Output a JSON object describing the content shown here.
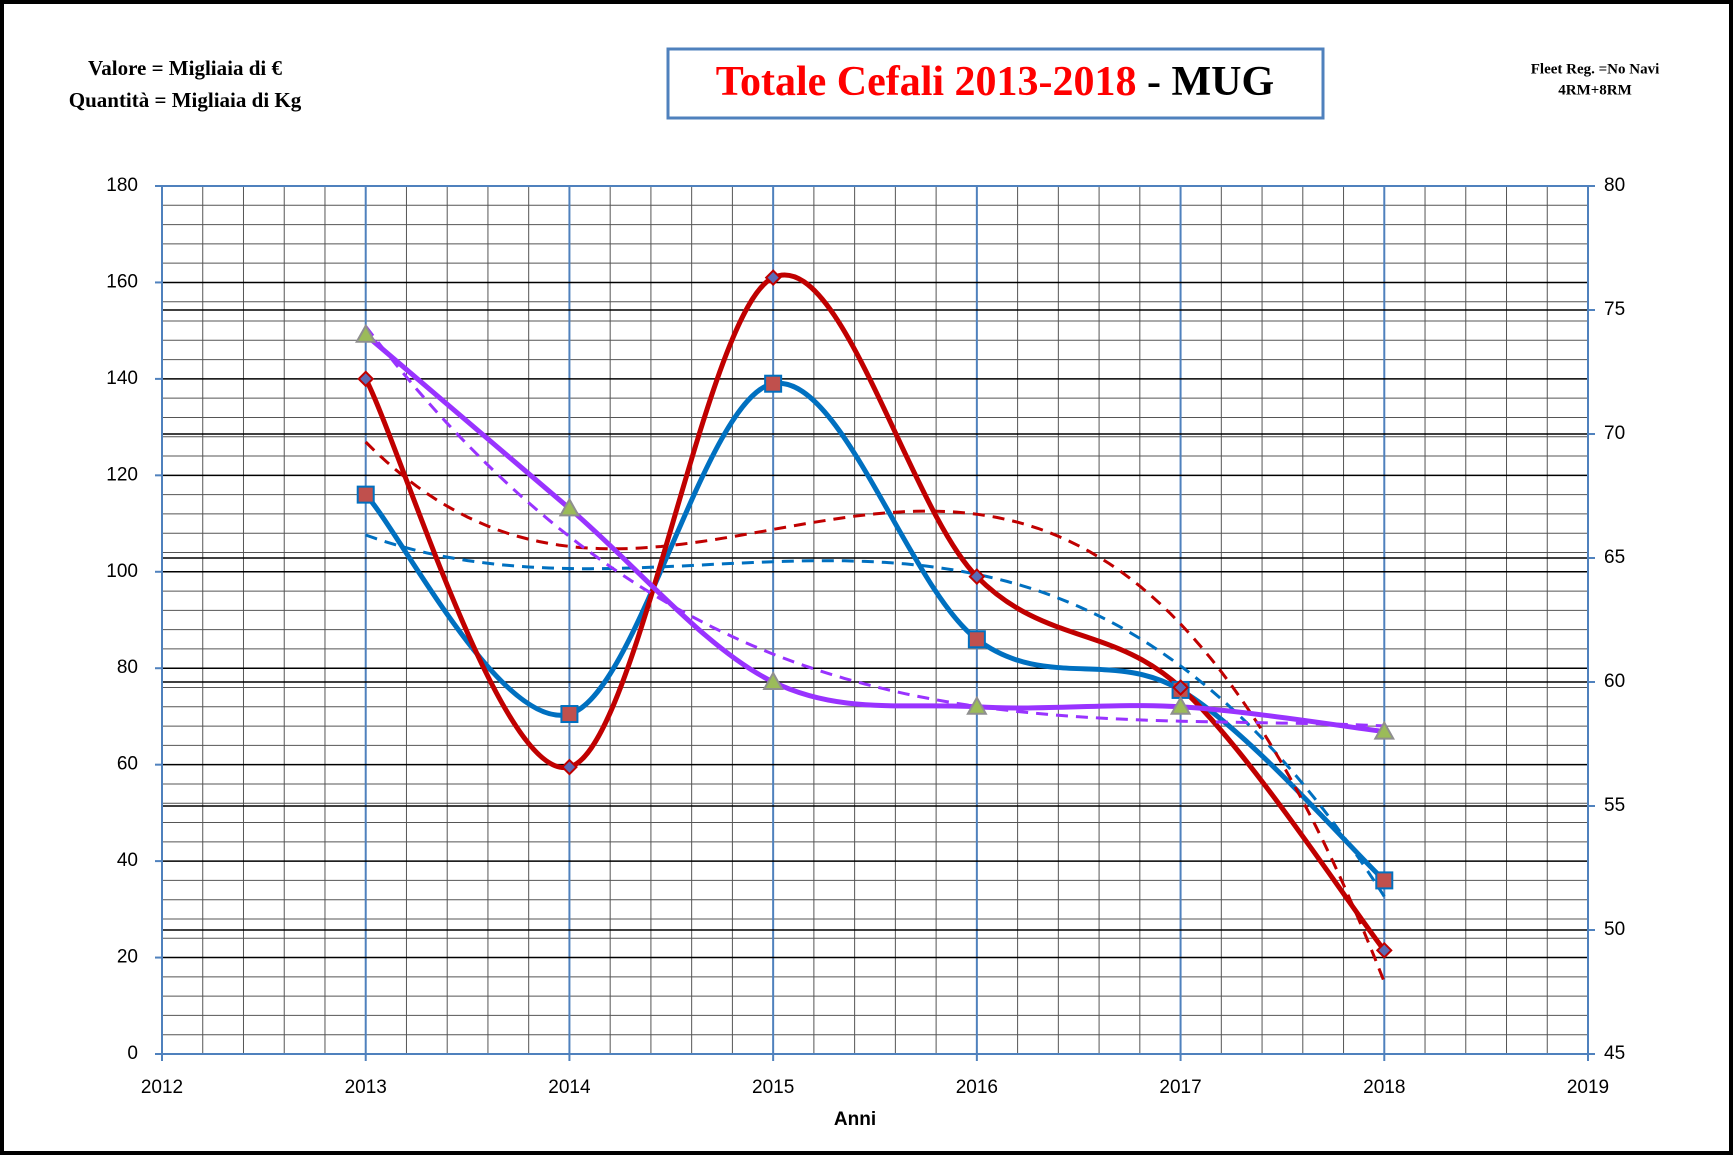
{
  "chart_data": {
    "type": "line",
    "title": "Totale Cefali 2013-2018",
    "title_suffix": "- MUG",
    "annotations": [
      "Valore = Migliaia di €",
      "Quantità = Migliaia di Kg",
      "Fleet Reg. =No Navi",
      "4RM+8RM"
    ],
    "annotation_colors": [
      "#0070c0",
      "#c00000",
      "#9933ff",
      "#9933ff"
    ],
    "x_label": "Anni",
    "x": [
      2013,
      2014,
      2015,
      2016,
      2017,
      2018
    ],
    "xlim": [
      2012,
      2019
    ],
    "xticks": [
      2012,
      2013,
      2014,
      2015,
      2016,
      2017,
      2018,
      2019
    ],
    "ylim": [
      0,
      180
    ],
    "yticks": [
      0,
      20,
      40,
      60,
      80,
      100,
      120,
      140,
      160,
      180
    ],
    "y2lim": [
      45,
      80
    ],
    "y2ticks": [
      45,
      50,
      55,
      60,
      65,
      70,
      75,
      80
    ],
    "grid": true,
    "series": [
      {
        "color": "#0070c0",
        "marker": "square",
        "marker_color": "#c0504d",
        "trendline": true,
        "values": [
          116,
          70.5,
          139,
          86,
          75.5,
          36
        ]
      },
      {
        "color": "#c00000",
        "marker": "diamond",
        "marker_color": "#5b6bb5",
        "trendline": true,
        "values": [
          140,
          59.5,
          161,
          99,
          76,
          21.5
        ]
      },
      {
        "color": "#9933ff",
        "marker": "triangle",
        "marker_color": "#9bbb59",
        "trendline": true,
        "axis": "y2",
        "values": [
          74,
          67,
          60,
          59,
          59,
          58
        ]
      }
    ]
  }
}
